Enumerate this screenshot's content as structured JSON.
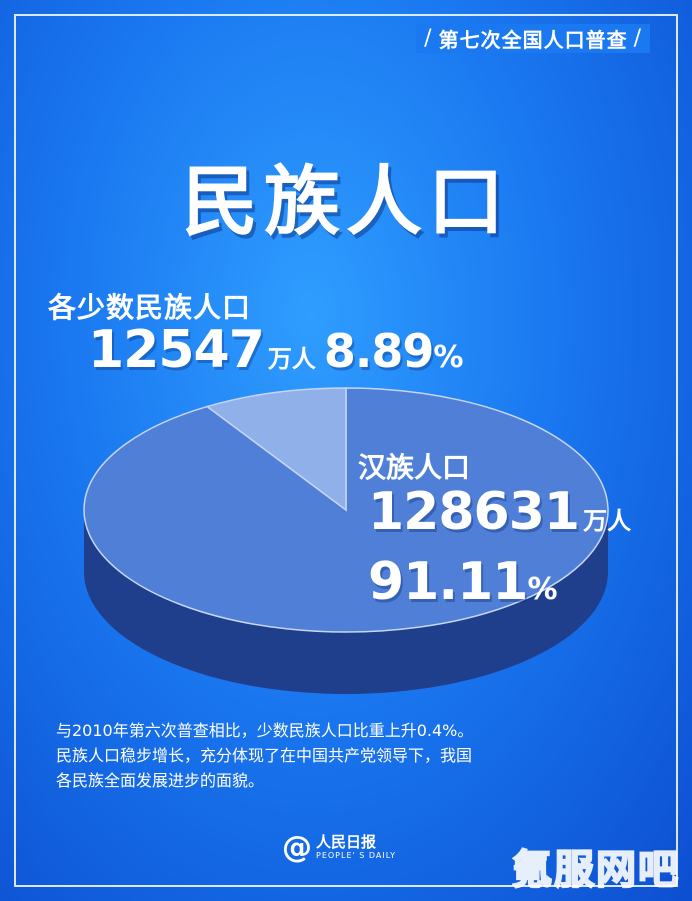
{
  "header": {
    "text": "第七次全国人口普查"
  },
  "title": "民族人口",
  "chart_data": {
    "type": "pie",
    "categories": [
      "各少数民族人口",
      "汉族人口"
    ],
    "values": [
      8.89,
      91.11
    ],
    "population_wan": [
      12547,
      128631
    ],
    "colors": [
      "#8fb0e8",
      "#4f7fd6"
    ]
  },
  "minor": {
    "label": "各少数民族人口",
    "value": "12547",
    "unit": "万人",
    "percent_num": "8.89",
    "percent_sign": "%"
  },
  "han": {
    "label": "汉族人口",
    "value": "128631",
    "unit": "万人",
    "percent_num": "91.11",
    "percent_sign": "%"
  },
  "note": [
    "与2010年第六次普查相比，少数民族人口比重上升0.4%。",
    "民族人口稳步增长，充分体现了在中国共产党领导下，我国",
    "各民族全面发展进步的面貌。"
  ],
  "logo": {
    "at": "@",
    "cn": "人民日报",
    "en": "PEOPLE' S DAILY"
  },
  "watermark": "氪服网吧"
}
